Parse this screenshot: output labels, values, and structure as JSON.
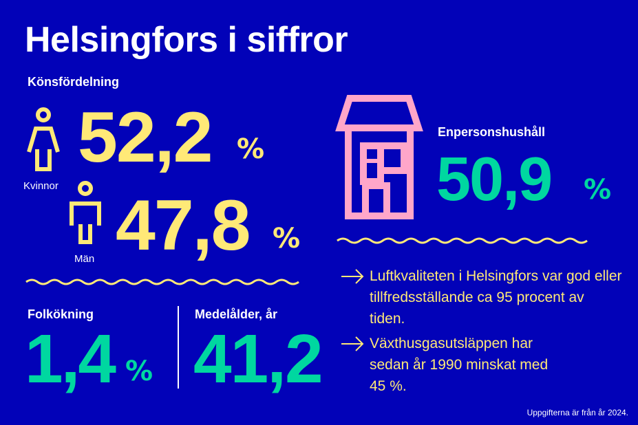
{
  "title": "Helsingfors i siffror",
  "gender": {
    "heading": "Könsfördelning",
    "women": {
      "label": "Kvinnor",
      "value": "52,2",
      "unit": "%",
      "icon": "woman-icon"
    },
    "men": {
      "label": "Män",
      "value": "47,8",
      "unit": "%",
      "icon": "man-icon"
    }
  },
  "population_growth": {
    "heading": "Folkökning",
    "value": "1,4",
    "unit": "%"
  },
  "median_age": {
    "heading": "Medelålder, år",
    "value": "41,2"
  },
  "single_households": {
    "heading": "Enpersonshushåll",
    "value": "50,9",
    "unit": "%",
    "icon": "house-icon"
  },
  "facts": [
    {
      "icon": "arrow-right-icon",
      "text": "Luftkvaliteten i Helsingfors var god eller tillfredsställande ca 95 procent av tiden."
    },
    {
      "icon": "arrow-right-icon",
      "text": "Växthusgasutsläppen har sedan år 1990 minskat med 45 %."
    }
  ],
  "footnote": "Uppgifterna är från år 2024.",
  "colors": {
    "background": "#0202b8",
    "yellow": "#ffe977",
    "green": "#00d7a0",
    "pink": "#ffa6c9"
  }
}
